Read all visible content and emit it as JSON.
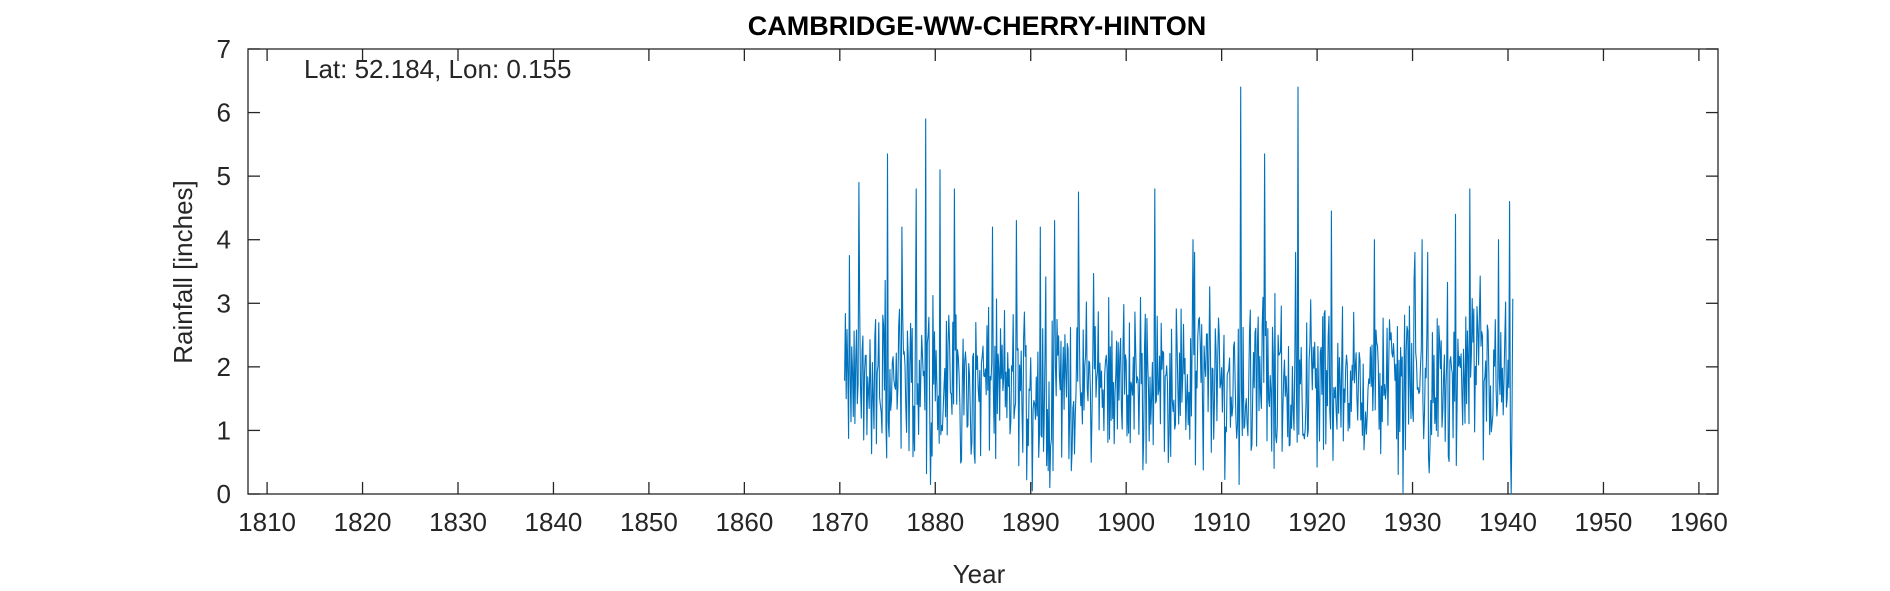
{
  "chart_data": {
    "type": "line",
    "title": "CAMBRIDGE-WW-CHERRY-HINTON",
    "annotation": "Lat: 52.184, Lon: 0.155",
    "xlabel": "Year",
    "ylabel": "Rainfall [inches]",
    "xlim": [
      1808,
      1962
    ],
    "ylim": [
      0,
      7
    ],
    "xticks": [
      1810,
      1820,
      1830,
      1840,
      1850,
      1860,
      1870,
      1880,
      1890,
      1900,
      1910,
      1920,
      1930,
      1940,
      1950,
      1960
    ],
    "yticks": [
      0,
      1,
      2,
      3,
      4,
      5,
      6,
      7
    ],
    "grid": false,
    "box": true,
    "series": [
      {
        "color": "#0072BD",
        "sampling": "monthly",
        "x_start": 1870.5,
        "x_end": 1940.5,
        "peaks": [
          [
            1871.0,
            3.75
          ],
          [
            1872.0,
            4.9
          ],
          [
            1875.0,
            5.35
          ],
          [
            1876.5,
            4.2
          ],
          [
            1878.0,
            4.8
          ],
          [
            1879.0,
            5.9
          ],
          [
            1880.5,
            5.1
          ],
          [
            1882.0,
            4.8
          ],
          [
            1886.0,
            4.2
          ],
          [
            1888.5,
            4.3
          ],
          [
            1891.0,
            4.2
          ],
          [
            1892.5,
            4.3
          ],
          [
            1895.0,
            4.75
          ],
          [
            1903.0,
            4.8
          ],
          [
            1907.0,
            4.0
          ],
          [
            1912.0,
            6.4
          ],
          [
            1914.5,
            5.35
          ],
          [
            1918.0,
            6.4
          ],
          [
            1921.5,
            4.45
          ],
          [
            1926.0,
            4.0
          ],
          [
            1931.0,
            4.0
          ],
          [
            1934.5,
            4.4
          ],
          [
            1936.0,
            4.8
          ],
          [
            1939.0,
            4.0
          ],
          [
            1940.2,
            4.6
          ]
        ],
        "troughs": [
          [
            1879.5,
            0.15
          ],
          [
            1890.2,
            0.05
          ],
          [
            1892.0,
            0.1
          ],
          [
            1911.8,
            0.15
          ],
          [
            1929.0,
            0.02
          ],
          [
            1940.3,
            0.0
          ]
        ]
      }
    ]
  }
}
